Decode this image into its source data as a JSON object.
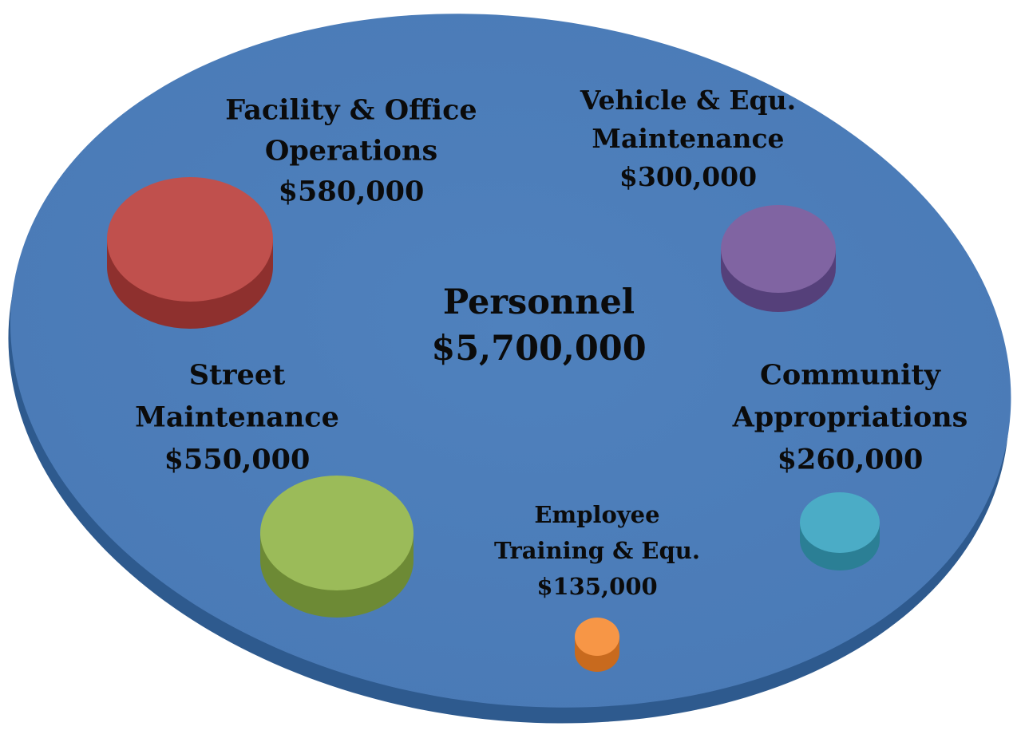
{
  "nodes": [
    {
      "lines": [
        "Facility & Office",
        "Operations"
      ],
      "amount": "$580,000"
    },
    {
      "lines": [
        "Vehicle & Equ.",
        "Maintenance"
      ],
      "amount": "$300,000"
    },
    {
      "lines": [
        "Personnel"
      ],
      "amount": "$5,700,000"
    },
    {
      "lines": [
        "Street",
        "Maintenance"
      ],
      "amount": "$550,000"
    },
    {
      "lines": [
        "Community",
        "Appropriations"
      ],
      "amount": "$260,000"
    },
    {
      "lines": [
        "Employee",
        "Training & Equ."
      ],
      "amount": "$135,000"
    }
  ]
}
